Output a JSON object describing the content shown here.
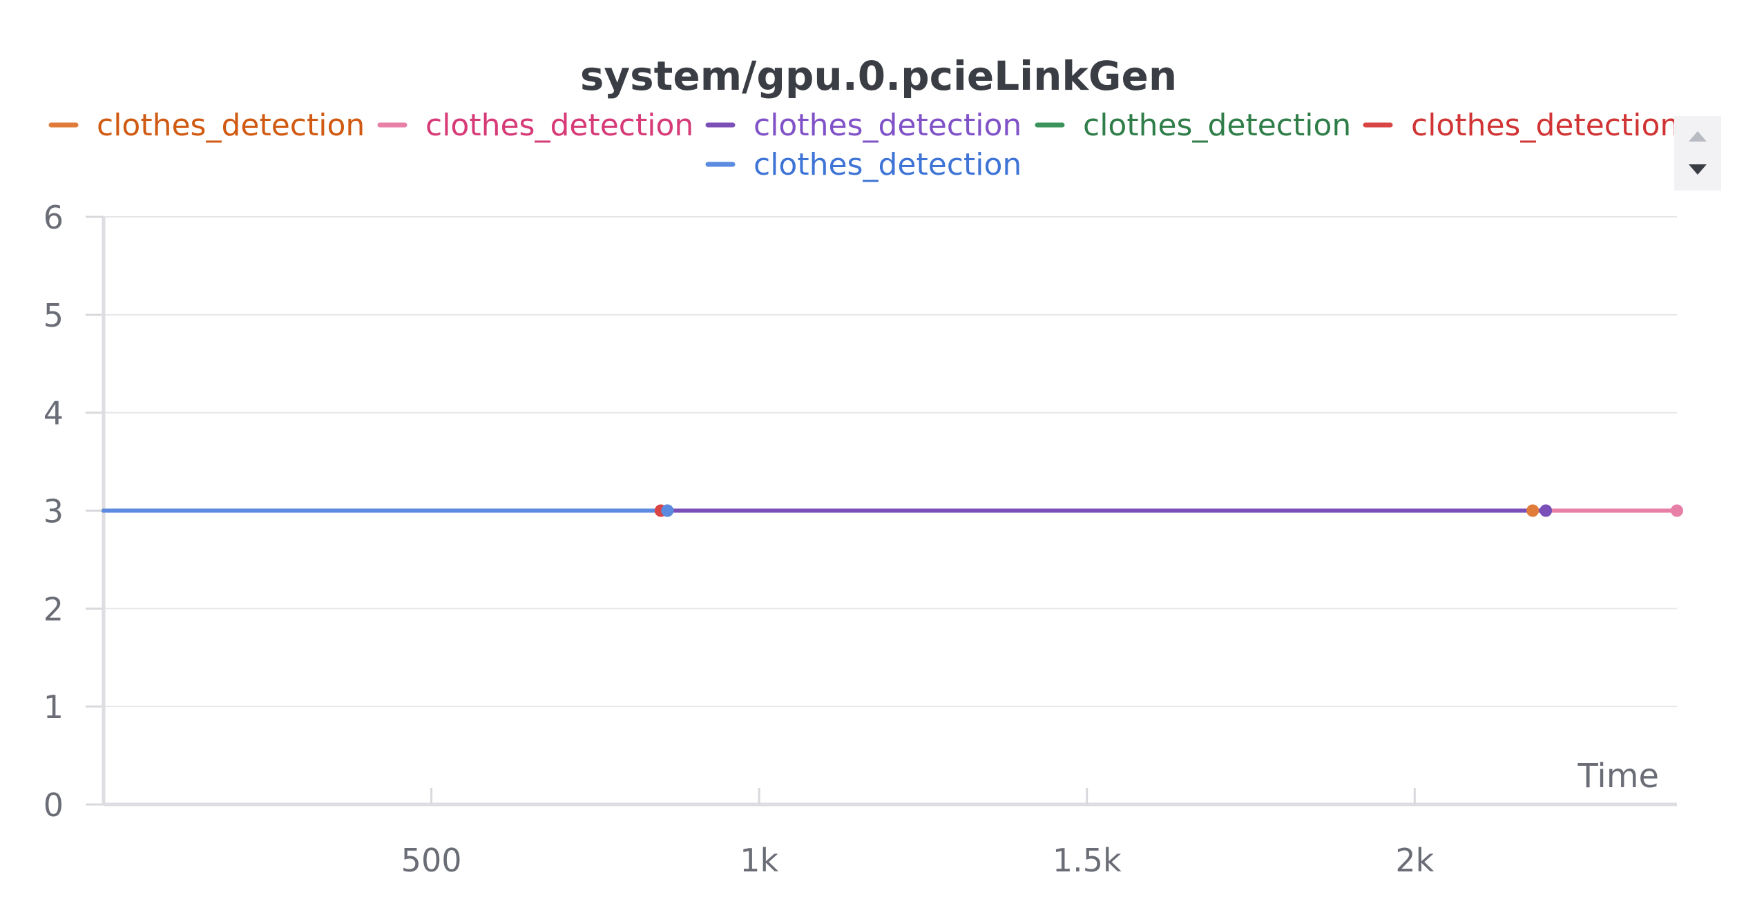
{
  "chart_data": {
    "type": "line",
    "title": "system/gpu.0.pcieLinkGen",
    "xlabel": "Time",
    "ylabel": "",
    "xlim": [
      0,
      2400
    ],
    "ylim": [
      0,
      6
    ],
    "x_ticks": [
      500,
      1000,
      1500,
      2000
    ],
    "x_tick_labels": [
      "500",
      "1k",
      "1.5k",
      "2k"
    ],
    "y_ticks": [
      0,
      1,
      2,
      3,
      4,
      5,
      6
    ],
    "y_tick_labels": [
      "0",
      "1",
      "2",
      "3",
      "4",
      "5",
      "6"
    ],
    "grid": true,
    "legend_position": "top",
    "legend_scroll": {
      "up_icon": "triangle-up-icon",
      "down_icon": "triangle-down-icon"
    },
    "series": [
      {
        "name": "clothes_detection",
        "color": "#e07b39",
        "text_color": "#d05a12",
        "x": [
          0,
          2180
        ],
        "y": [
          3,
          3
        ]
      },
      {
        "name": "clothes_detection",
        "color": "#e87fa6",
        "text_color": "#d63a77",
        "x": [
          0,
          2400
        ],
        "y": [
          3,
          3
        ]
      },
      {
        "name": "clothes_detection",
        "color": "#7b4fb8",
        "text_color": "#8052c7",
        "x": [
          0,
          2200
        ],
        "y": [
          3,
          3
        ]
      },
      {
        "name": "clothes_detection",
        "color": "#3a935a",
        "text_color": "#2f7d48",
        "x": [
          0,
          860
        ],
        "y": [
          3,
          3
        ]
      },
      {
        "name": "clothes_detection",
        "color": "#d94444",
        "text_color": "#d03434",
        "x": [
          0,
          850
        ],
        "y": [
          3,
          3
        ]
      },
      {
        "name": "clothes_detection",
        "color": "#5b8be0",
        "text_color": "#3e74d6",
        "x": [
          0,
          860
        ],
        "y": [
          3,
          3
        ]
      }
    ]
  }
}
